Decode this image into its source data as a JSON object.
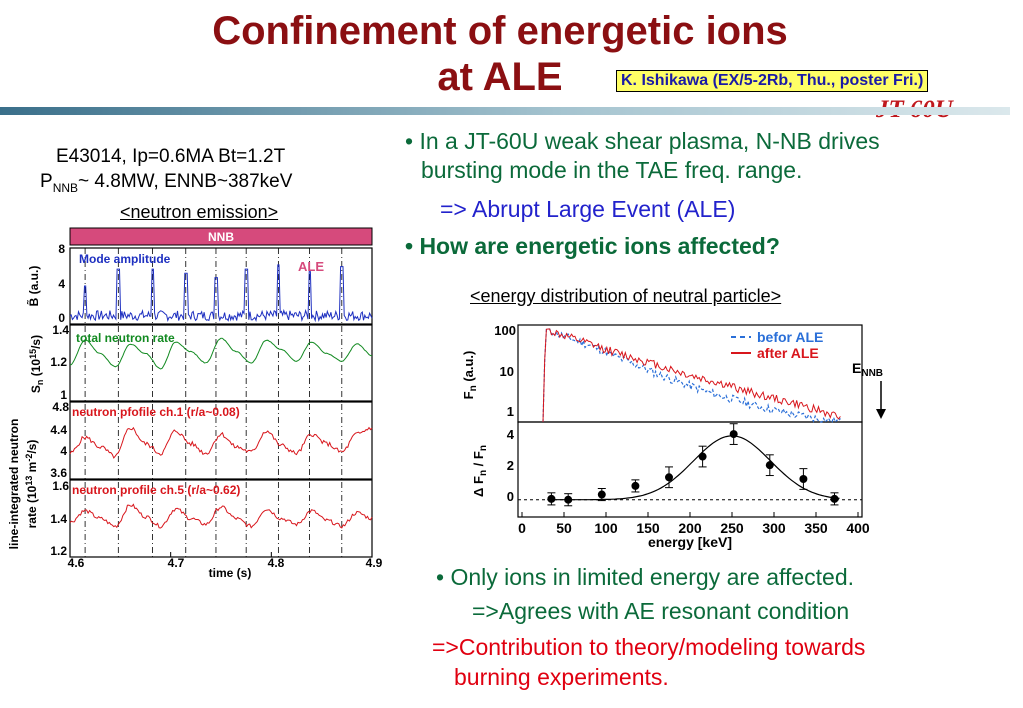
{
  "title_line1": "Confinement of energetic ions",
  "title_line2": "at ALE",
  "author": "K. Ishikawa (EX/5-2Rb, Thu., poster Fri.)",
  "logo": "JT-60U",
  "left": {
    "shot": "E43014, Ip=0.6MA Bt=1.2T",
    "pnbi_p": "P",
    "pnbi_sub": "NNB",
    "pnbi_rest": "~ 4.8MW, ENNB~387keV",
    "heading": "<neutron emission>",
    "nnb_bar": "NNB",
    "panel1_label": "Mode amplitude",
    "panel1_ale": "ALE",
    "panel1_ylabel": "B̃ (a.u.)",
    "panel1_ticks": [
      "8",
      "4",
      "0"
    ],
    "panel2_label": "total neutron rate",
    "panel2_ylabel_a": "S",
    "panel2_ylabel_sub": "n",
    "panel2_ylabel_b": " (10",
    "panel2_ylabel_sup": "15",
    "panel2_ylabel_c": "/s)",
    "panel2_ticks": [
      "1.4",
      "1.2",
      "1"
    ],
    "panel3_label": "neutron pfofile ch.1 (r/a~0.08)",
    "panel3_ticks": [
      "4.8",
      "4.4",
      "4",
      "3.6"
    ],
    "panel4_label": "neutron profile ch.5 (r/a~0.62)",
    "panel4_ticks": [
      "1.6",
      "1.4",
      "1.2"
    ],
    "shared_ylabel_1": "line-integrated neutron",
    "shared_ylabel_2a": "rate (10",
    "shared_ylabel_2sup1": "13",
    "shared_ylabel_2b": " m",
    "shared_ylabel_2sup2": "-2",
    "shared_ylabel_2c": "/s)",
    "xticks": [
      "4.6",
      "4.7",
      "4.8",
      "4.9"
    ],
    "xlabel": "time (s)"
  },
  "bullets": {
    "b1": "• In a JT-60U weak shear plasma, N-NB drives",
    "b1_cont": "bursting mode in the TAE freq. range.",
    "b1_sub": "=> Abrupt Large Event (ALE)",
    "b2": "• How are energetic ions affected?",
    "b3": "• Only ions in limited energy are affected.",
    "b3_sub": "=>Agrees with AE resonant condition",
    "b4": "=>Contribution to theory/modeling towards",
    "b4_cont": "burning experiments."
  },
  "right": {
    "heading": "<energy distribution of neutral particle>",
    "legend_before": "befor ALE",
    "legend_after": "after ALE",
    "enbb": "E",
    "enbb_sub": "NNB",
    "top_ylabel": "F",
    "top_ylabel_sub": "n",
    "top_ylabel_rest": " (a.u.)",
    "top_ticks": [
      "100",
      "10",
      "1"
    ],
    "bot_ylabel": "Δ F",
    "bot_ylabel_sub": "n",
    "bot_ylabel_mid": " / F",
    "bot_ylabel_sub2": "n",
    "bot_ticks": [
      "4",
      "2",
      "0"
    ],
    "xticks": [
      "0",
      "50",
      "100",
      "150",
      "200",
      "250",
      "300",
      "350",
      "400"
    ],
    "xlabel": "energy [keV]"
  },
  "chart_data": [
    {
      "type": "line",
      "panel": "mode amplitude",
      "ylabel": "B̃ (a.u.)",
      "ylim": [
        0,
        9
      ],
      "xlim": [
        4.6,
        4.9
      ],
      "x_ticks": [
        4.6,
        4.7,
        4.8,
        4.9
      ],
      "spike_times": [
        4.615,
        4.648,
        4.682,
        4.715,
        4.745,
        4.775,
        4.807,
        4.838,
        4.87
      ],
      "spike_heights": [
        4.5,
        6.5,
        6.5,
        6,
        5.5,
        6.5,
        7,
        6.2,
        6.8
      ],
      "baseline": 1,
      "color": "#1d2fc0"
    },
    {
      "type": "line",
      "panel": "total neutron rate",
      "ylim": [
        1,
        1.4
      ],
      "x": [
        4.6,
        4.615,
        4.63,
        4.645,
        4.66,
        4.675,
        4.69,
        4.705,
        4.72,
        4.735,
        4.75,
        4.765,
        4.78,
        4.795,
        4.81,
        4.825,
        4.84,
        4.855,
        4.87,
        4.885,
        4.9
      ],
      "values": [
        1.19,
        1.32,
        1.25,
        1.18,
        1.3,
        1.25,
        1.17,
        1.31,
        1.26,
        1.2,
        1.33,
        1.26,
        1.2,
        1.32,
        1.27,
        1.21,
        1.31,
        1.25,
        1.21,
        1.3,
        1.24
      ],
      "color": "#128a21"
    },
    {
      "type": "line",
      "panel": "neutron pfofile ch.1 (r/a~0.08)",
      "ylim": [
        3.6,
        4.8
      ],
      "x": [
        4.6,
        4.615,
        4.63,
        4.645,
        4.66,
        4.675,
        4.69,
        4.705,
        4.72,
        4.735,
        4.75,
        4.765,
        4.78,
        4.795,
        4.81,
        4.825,
        4.84,
        4.855,
        4.87,
        4.885,
        4.9
      ],
      "values": [
        4.0,
        4.25,
        4.1,
        3.95,
        4.4,
        4.15,
        4.0,
        4.35,
        4.15,
        4.0,
        4.3,
        4.1,
        4.02,
        4.35,
        4.12,
        4.0,
        4.3,
        4.15,
        4.02,
        4.3,
        4.4
      ],
      "color": "#d8161c"
    },
    {
      "type": "line",
      "panel": "neutron profile ch.5 (r/a~0.62)",
      "ylim": [
        1.2,
        1.6
      ],
      "x": [
        4.6,
        4.615,
        4.63,
        4.645,
        4.66,
        4.675,
        4.69,
        4.705,
        4.72,
        4.735,
        4.75,
        4.765,
        4.78,
        4.795,
        4.81,
        4.825,
        4.84,
        4.855,
        4.87,
        4.885,
        4.9
      ],
      "values": [
        1.38,
        1.44,
        1.4,
        1.36,
        1.47,
        1.41,
        1.36,
        1.45,
        1.4,
        1.37,
        1.46,
        1.4,
        1.36,
        1.45,
        1.4,
        1.37,
        1.44,
        1.39,
        1.36,
        1.43,
        1.4
      ],
      "color": "#d8161c"
    },
    {
      "type": "line",
      "panel": "energy distribution (log Fn)",
      "ylim": [
        1,
        100
      ],
      "log_y": true,
      "xlim": [
        0,
        400
      ],
      "series": [
        {
          "name": "befor ALE",
          "x": [
            25,
            28,
            40,
            60,
            80,
            100,
            120,
            140,
            160,
            180,
            200,
            220,
            240,
            260,
            280,
            300,
            320,
            340,
            360,
            380
          ],
          "values": [
            1,
            100,
            80,
            60,
            45,
            32,
            22,
            16,
            11,
            8,
            6,
            4.5,
            3.5,
            2.8,
            2.2,
            1.8,
            1.5,
            1.3,
            1.1,
            1.0
          ],
          "color": "#2a6fd8",
          "style": "dashed"
        },
        {
          "name": "after ALE",
          "x": [
            25,
            28,
            40,
            60,
            80,
            100,
            120,
            140,
            160,
            180,
            200,
            220,
            240,
            260,
            280,
            300,
            320,
            340,
            360,
            380
          ],
          "values": [
            1,
            100,
            82,
            62,
            48,
            36,
            28,
            22,
            17,
            13,
            10,
            8,
            6.5,
            5,
            4,
            3.2,
            2.6,
            2.1,
            1.6,
            1.2
          ],
          "color": "#d8161c",
          "style": "solid"
        }
      ]
    },
    {
      "type": "scatter",
      "panel": "ΔFn / Fn",
      "xlim": [
        0,
        400
      ],
      "ylim": [
        -1,
        4.5
      ],
      "x": [
        35,
        55,
        95,
        135,
        175,
        215,
        252,
        295,
        335,
        372
      ],
      "values": [
        0.05,
        0.0,
        0.3,
        0.8,
        1.3,
        2.5,
        3.8,
        2.0,
        1.2,
        0.05
      ],
      "fit_curve_peak": 250,
      "color": "#000000"
    }
  ]
}
